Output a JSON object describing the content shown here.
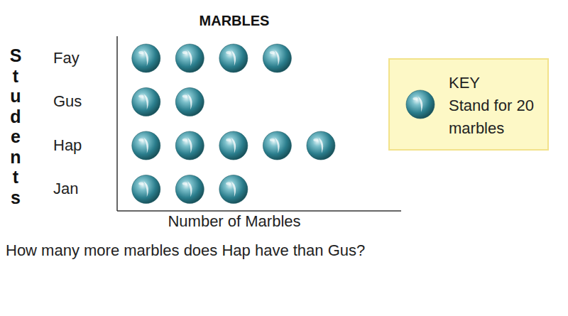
{
  "chart_data": {
    "type": "pictograph",
    "orientation": "horizontal",
    "title": "MARBLES",
    "xlabel": "Number of Marbles",
    "ylabel": "Students",
    "categories": [
      "Fay",
      "Gus",
      "Hap",
      "Jan"
    ],
    "values": [
      80,
      40,
      100,
      60
    ],
    "xlim": [
      0,
      130
    ],
    "tick_labels": "y",
    "color": "#2a7d8c",
    "key": {
      "title": "KEY",
      "text": "Stand for 20 marbles",
      "value": 20
    },
    "question": "How many more marbles does Hap have than Gus?"
  }
}
